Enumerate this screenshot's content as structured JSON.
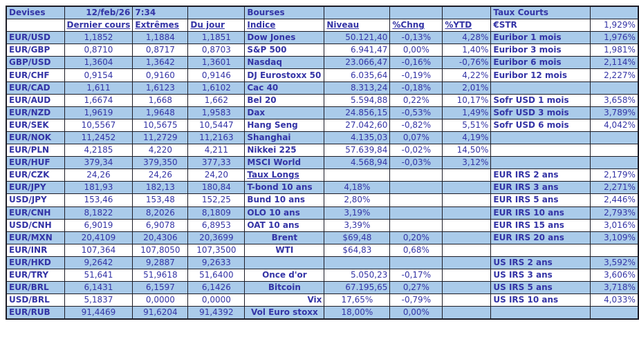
{
  "colors": {
    "band_blue": "#aacbea",
    "text_blue": "#3434a6",
    "border": "#1c1c26"
  },
  "devises": {
    "title": "Devises",
    "date": "12/feb/26",
    "time": "7:34",
    "headers": [
      "Dernier cours",
      "Extrêmes",
      "Du jour"
    ],
    "rows": [
      [
        "EUR/USD",
        "1,1852",
        "1,1884",
        "1,1851"
      ],
      [
        "EUR/GBP",
        "0,8710",
        "0,8717",
        "0,8703"
      ],
      [
        "GBP/USD",
        "1,3604",
        "1,3642",
        "1,3601"
      ],
      [
        "EUR/CHF",
        "0,9154",
        "0,9160",
        "0,9146"
      ],
      [
        "EUR/CAD",
        "1,611",
        "1,6123",
        "1,6102"
      ],
      [
        "EUR/AUD",
        "1,6674",
        "1,668",
        "1,662"
      ],
      [
        "EUR/NZD",
        "1,9619",
        "1,9648",
        "1,9583"
      ],
      [
        "EUR/SEK",
        "10,5567",
        "10,5675",
        "10,5447"
      ],
      [
        "EUR/NOK",
        "11,2452",
        "11,2729",
        "11,2163"
      ],
      [
        "EUR/PLN",
        "4,2185",
        "4,220",
        "4,211"
      ],
      [
        "EUR/HUF",
        "379,34",
        "379,350",
        "377,33"
      ],
      [
        "EUR/CZK",
        "24,26",
        "24,26",
        "24,20"
      ],
      [
        "EUR/JPY",
        "181,93",
        "182,13",
        "180,84"
      ],
      [
        "USD/JPY",
        "153,46",
        "153,48",
        "152,25"
      ],
      [
        "EUR/CNH",
        "8,1822",
        "8,2026",
        "8,1809"
      ],
      [
        "USD/CNH",
        "6,9019",
        "6,9078",
        "6,8953"
      ],
      [
        "EUR/MXN",
        "20,4109",
        "20,4306",
        "20,3699"
      ],
      [
        "EUR/INR",
        "107,364",
        "107,8050",
        "107,3500"
      ],
      [
        "EUR/HKD",
        "9,2642",
        "9,2887",
        "9,2633"
      ],
      [
        "EUR/TRY",
        "51,641",
        "51,9618",
        "51,6400"
      ],
      [
        "EUR/BRL",
        "6,1431",
        "6,1597",
        "6,1426"
      ],
      [
        "USD/BRL",
        "5,1837",
        "0,0000",
        "0,0000"
      ],
      [
        "EUR/RUB",
        "91,4469",
        "91,6204",
        "91,4392"
      ]
    ]
  },
  "bourses": {
    "title": "Bourses",
    "headers": [
      "Indice",
      "Niveau",
      "%Chng",
      "%YTD"
    ],
    "indices": [
      [
        "Dow Jones",
        "50.121,40",
        "-0,13%",
        "4,28%"
      ],
      [
        "S&P 500",
        "6.941,47",
        "0,00%",
        "1,40%"
      ],
      [
        "Nasdaq",
        "23.066,47",
        "-0,16%",
        "-0,76%"
      ],
      [
        "DJ Eurostoxx 50",
        "6.035,64",
        "-0,19%",
        "4,22%"
      ],
      [
        "Cac 40",
        "8.313,24",
        "-0,18%",
        "2,01%"
      ],
      [
        "Bel 20",
        "5.594,88",
        "0,22%",
        "10,17%"
      ],
      [
        "Dax",
        "24.856,15",
        "-0,53%",
        "1,49%"
      ],
      [
        "Hang Seng",
        "27.042,60",
        "-0,82%",
        "5,51%"
      ],
      [
        "Shanghai",
        "4.135,03",
        "0,07%",
        "4,19%"
      ],
      [
        "Nikkei 225",
        "57.639,84",
        "-0,02%",
        "14,50%"
      ],
      [
        "MSCI World",
        "4.568,94",
        "-0,03%",
        "3,12%"
      ]
    ],
    "taux_longs": {
      "title": "Taux Longs",
      "rows": [
        [
          "T-bond 10 ans",
          "4,18%"
        ],
        [
          "Bund 10 ans",
          "2,80%"
        ],
        [
          "OLO 10 ans",
          "3,19%"
        ],
        [
          "OAT 10 ans",
          "3,39%"
        ]
      ]
    },
    "commodities": [
      [
        "Brent",
        "$69,48",
        "0,20%"
      ],
      [
        "WTI",
        "$64,83",
        "0,68%"
      ]
    ],
    "others": [
      [
        "Once d'or",
        "5.050,23",
        "-0,17%"
      ],
      [
        "Bitcoin",
        "67.195,65",
        "0,27%"
      ],
      [
        "Vix",
        "17,65%",
        "-0,79%"
      ],
      [
        "Vol Euro stoxx",
        "18,00%",
        "0,00%"
      ]
    ]
  },
  "taux_courts": {
    "title": "Taux Courts",
    "groups": [
      {
        "rows": [
          [
            "€STR",
            "1,929%"
          ],
          [
            "Euribor 1 mois",
            "1,976%"
          ],
          [
            "Euribor 3 mois",
            "1,981%"
          ],
          [
            "Euribor 6 mois",
            "2,114%"
          ],
          [
            "Euribor 12 mois",
            "2,227%"
          ]
        ]
      },
      {
        "rows": [
          [
            "Sofr USD 1 mois",
            "3,658%"
          ],
          [
            "Sofr USD 3 mois",
            "3,789%"
          ],
          [
            "Sofr USD 6 mois",
            "4,042%"
          ]
        ]
      },
      {
        "rows": [
          [
            "EUR IRS 2 ans",
            "2,179%"
          ],
          [
            "EUR IRS 3 ans",
            "2,271%"
          ],
          [
            "EUR IRS 5 ans",
            "2,446%"
          ],
          [
            "EUR IRS 10 ans",
            "2,793%"
          ],
          [
            "EUR IRS 15 ans",
            "3,016%"
          ],
          [
            "EUR IRS 20 ans",
            "3,109%"
          ]
        ]
      },
      {
        "rows": [
          [
            "US IRS 2 ans",
            "3,592%"
          ],
          [
            "US IRS 3 ans",
            "3,606%"
          ],
          [
            "US IRS 5 ans",
            "3,718%"
          ],
          [
            "US IRS 10 ans",
            "4,033%"
          ]
        ]
      }
    ]
  }
}
